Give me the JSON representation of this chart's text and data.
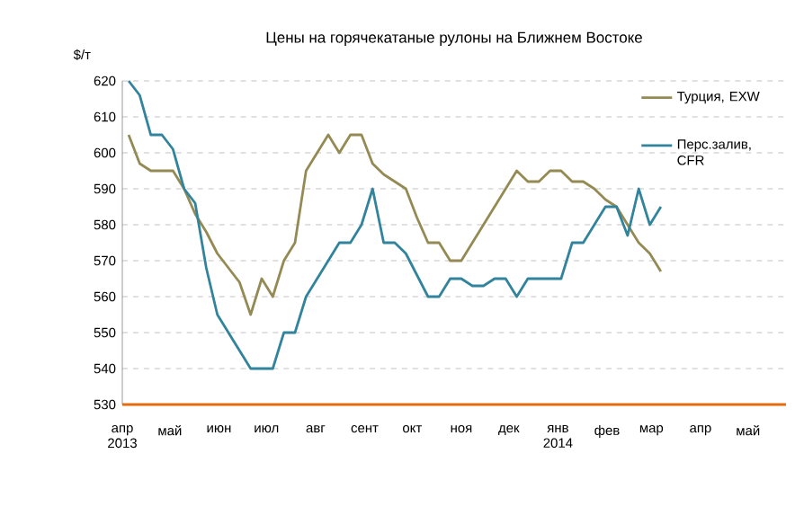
{
  "chart_data": {
    "type": "line",
    "title": "Цены на горячекатаные рулоны на Ближнем Востоке",
    "ylabel": "$/т",
    "x": [
      "2013-04-05",
      "2013-04-12",
      "2013-04-19",
      "2013-04-26",
      "2013-05-03",
      "2013-05-10",
      "2013-05-17",
      "2013-05-24",
      "2013-05-31",
      "2013-06-07",
      "2013-06-14",
      "2013-06-21",
      "2013-06-28",
      "2013-07-05",
      "2013-07-12",
      "2013-07-19",
      "2013-07-26",
      "2013-08-02",
      "2013-08-09",
      "2013-08-16",
      "2013-08-23",
      "2013-08-30",
      "2013-09-06",
      "2013-09-13",
      "2013-09-20",
      "2013-09-27",
      "2013-10-04",
      "2013-10-11",
      "2013-10-18",
      "2013-10-25",
      "2013-11-01",
      "2013-11-08",
      "2013-11-15",
      "2013-11-22",
      "2013-11-29",
      "2013-12-06",
      "2013-12-13",
      "2013-12-20",
      "2013-12-27",
      "2014-01-03",
      "2014-01-10",
      "2014-01-17",
      "2014-01-24",
      "2014-01-31",
      "2014-02-07",
      "2014-02-14",
      "2014-02-21",
      "2014-02-28",
      "2014-03-07"
    ],
    "series": [
      {
        "name": "Турция, EXW",
        "color": "#948a54",
        "values": [
          605,
          597,
          595,
          595,
          595,
          590,
          583,
          578,
          572,
          568,
          564,
          555,
          565,
          560,
          570,
          575,
          595,
          600,
          605,
          600,
          605,
          605,
          597,
          594,
          592,
          590,
          582,
          575,
          575,
          570,
          570,
          575,
          580,
          585,
          590,
          595,
          592,
          592,
          595,
          595,
          592,
          592,
          590,
          587,
          585,
          580,
          575,
          572,
          567
        ]
      },
      {
        "name": "Перс.залив, CFR",
        "color": "#31849b",
        "values": [
          620,
          616,
          605,
          605,
          601,
          590,
          586,
          568,
          555,
          550,
          545,
          540,
          540,
          540,
          550,
          550,
          560,
          565,
          570,
          575,
          575,
          580,
          590,
          575,
          575,
          572,
          566,
          560,
          560,
          565,
          565,
          563,
          563,
          565,
          565,
          560,
          565,
          565,
          565,
          565,
          575,
          575,
          580,
          585,
          585,
          577,
          590,
          580,
          585
        ]
      }
    ],
    "xlim": [
      "2013-04-01",
      "2014-05-25"
    ],
    "xticks": [
      {
        "value": "2013-04-01",
        "label": "апр 2013"
      },
      {
        "value": "2013-05-01",
        "label": "май"
      },
      {
        "value": "2013-06-01",
        "label": "июн"
      },
      {
        "value": "2013-07-01",
        "label": "июл"
      },
      {
        "value": "2013-08-01",
        "label": "авг"
      },
      {
        "value": "2013-09-01",
        "label": "сент"
      },
      {
        "value": "2013-10-01",
        "label": "окт"
      },
      {
        "value": "2013-11-01",
        "label": "ноя"
      },
      {
        "value": "2013-12-01",
        "label": "дек"
      },
      {
        "value": "2014-01-01",
        "label": "янв 2014"
      },
      {
        "value": "2014-02-01",
        "label": "фев"
      },
      {
        "value": "2014-03-01",
        "label": "мар"
      },
      {
        "value": "2014-04-01",
        "label": "апр"
      },
      {
        "value": "2014-05-01",
        "label": "май"
      }
    ],
    "ylim": [
      530,
      620
    ],
    "yticks": [
      530,
      540,
      550,
      560,
      570,
      580,
      590,
      600,
      610,
      620
    ],
    "grid": "y",
    "legend": "top right"
  }
}
